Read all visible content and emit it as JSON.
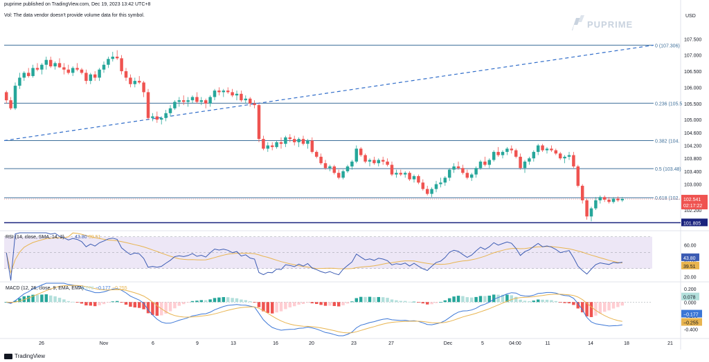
{
  "header": {
    "published": "puprime published on TradingView.com, Dec 19, 2023 13:42 UTC+8",
    "volume_note": "Vol: The data vendor doesn't provide volume data for this symbol."
  },
  "logo": "PUPRIME",
  "footer": "TradingView",
  "currency": "USD",
  "colors": {
    "up": "#26a69a",
    "down": "#ef5350",
    "fib_line": "#3c6e99",
    "trend": "#2f6cc9",
    "support": "#1a237e",
    "rsi_line": "#3b5bb3",
    "rsi_ma": "#e8b44f",
    "macd_line": "#3b76d6",
    "signal_line": "#e8b44f",
    "hist_up": "#26a69a",
    "hist_up_weak": "#b2dfdb",
    "hist_down": "#ef5350",
    "hist_down_weak": "#ffcdd2",
    "rsi_band": "#ede7f6"
  },
  "chart_data": [
    {
      "type": "candlestick",
      "ylim": [
        101.6,
        107.85
      ],
      "y_ticks": [
        "107.500",
        "107.000",
        "106.500",
        "106.000",
        "105.500",
        "105.000",
        "104.600",
        "104.200",
        "103.800",
        "103.400",
        "103.000",
        "102.200"
      ],
      "x_ticks": [
        "26",
        "Nov",
        "6",
        "9",
        "13",
        "16",
        "20",
        "23",
        "27",
        "Dec",
        "5",
        "04:00",
        "11",
        "14",
        "18",
        "21"
      ],
      "fib_levels": [
        {
          "label": "0 (107.306)",
          "value": 107.306
        },
        {
          "label": "0.236 (105.5",
          "value": 105.51
        },
        {
          "label": "0.382 (104.",
          "value": 104.35
        },
        {
          "label": "0.5 (103.48)",
          "value": 103.48
        },
        {
          "label": "0.618 (102.",
          "value": 102.58
        }
      ],
      "support": {
        "label": "101.805",
        "value": 101.805
      },
      "last_price": {
        "label": "102.541",
        "value": 102.541
      },
      "countdown": "02:17:22",
      "trendline": [
        {
          "x": 0,
          "y": 104.35
        },
        {
          "x": 169,
          "y": 107.306
        }
      ],
      "ohlc": [
        [
          105.85,
          105.9,
          105.5,
          105.6
        ],
        [
          105.6,
          105.7,
          105.3,
          105.35
        ],
        [
          105.35,
          106.15,
          105.3,
          106.05
        ],
        [
          106.05,
          106.45,
          105.95,
          106.3
        ],
        [
          106.3,
          106.5,
          106.2,
          106.45
        ],
        [
          106.45,
          106.6,
          106.3,
          106.35
        ],
        [
          106.35,
          106.7,
          106.3,
          106.6
        ],
        [
          106.6,
          106.75,
          106.5,
          106.55
        ],
        [
          106.55,
          106.75,
          106.4,
          106.7
        ],
        [
          106.7,
          106.95,
          106.55,
          106.85
        ],
        [
          106.85,
          106.95,
          106.6,
          106.65
        ],
        [
          106.65,
          106.8,
          106.55,
          106.75
        ],
        [
          106.75,
          106.9,
          106.6,
          106.62
        ],
        [
          106.62,
          106.75,
          106.4,
          106.55
        ],
        [
          106.55,
          106.7,
          106.4,
          106.45
        ],
        [
          106.45,
          106.65,
          106.35,
          106.6
        ],
        [
          106.6,
          106.75,
          106.5,
          106.55
        ],
        [
          106.55,
          106.6,
          106.4,
          106.45
        ],
        [
          106.45,
          106.55,
          106.1,
          106.2
        ],
        [
          106.2,
          106.45,
          106.1,
          106.4
        ],
        [
          106.4,
          106.5,
          106.2,
          106.3
        ],
        [
          106.3,
          106.6,
          106.2,
          106.55
        ],
        [
          106.55,
          106.8,
          106.45,
          106.7
        ],
        [
          106.7,
          106.95,
          106.6,
          106.88
        ],
        [
          106.88,
          107.1,
          106.8,
          106.95
        ],
        [
          106.95,
          107.15,
          106.85,
          106.9
        ],
        [
          106.9,
          107.0,
          106.4,
          106.5
        ],
        [
          106.5,
          106.6,
          106.2,
          106.3
        ],
        [
          106.3,
          106.4,
          106.0,
          106.1
        ],
        [
          106.1,
          106.3,
          106.0,
          106.2
        ],
        [
          106.2,
          106.35,
          106.1,
          106.15
        ],
        [
          106.15,
          106.2,
          105.7,
          105.85
        ],
        [
          105.85,
          105.95,
          105.0,
          105.05
        ],
        [
          105.05,
          105.2,
          104.95,
          105.1
        ],
        [
          105.1,
          105.25,
          104.9,
          105.0
        ],
        [
          105.0,
          105.1,
          104.85,
          105.05
        ],
        [
          105.05,
          105.3,
          104.95,
          105.2
        ],
        [
          105.2,
          105.45,
          105.1,
          105.35
        ],
        [
          105.35,
          105.6,
          105.3,
          105.55
        ],
        [
          105.55,
          105.7,
          105.4,
          105.6
        ],
        [
          105.6,
          105.75,
          105.45,
          105.55
        ],
        [
          105.55,
          105.7,
          105.4,
          105.6
        ],
        [
          105.6,
          105.75,
          105.5,
          105.7
        ],
        [
          105.7,
          105.85,
          105.5,
          105.55
        ],
        [
          105.55,
          105.7,
          105.45,
          105.6
        ],
        [
          105.6,
          105.65,
          105.35,
          105.5
        ],
        [
          105.5,
          105.75,
          105.4,
          105.7
        ],
        [
          105.7,
          105.95,
          105.6,
          105.9
        ],
        [
          105.9,
          106.0,
          105.75,
          105.85
        ],
        [
          105.85,
          105.95,
          105.7,
          105.9
        ],
        [
          105.9,
          106.0,
          105.8,
          105.85
        ],
        [
          105.85,
          105.95,
          105.7,
          105.75
        ],
        [
          105.75,
          105.9,
          105.6,
          105.8
        ],
        [
          105.8,
          105.9,
          105.55,
          105.6
        ],
        [
          105.6,
          105.75,
          105.5,
          105.65
        ],
        [
          105.65,
          105.7,
          105.4,
          105.5
        ],
        [
          105.5,
          105.6,
          105.35,
          105.45
        ],
        [
          105.45,
          105.5,
          104.3,
          104.4
        ],
        [
          104.4,
          104.5,
          104.05,
          104.1
        ],
        [
          104.1,
          104.3,
          104.0,
          104.2
        ],
        [
          104.2,
          104.3,
          104.05,
          104.15
        ],
        [
          104.15,
          104.35,
          104.1,
          104.3
        ],
        [
          104.3,
          104.45,
          104.1,
          104.25
        ],
        [
          104.25,
          104.5,
          104.15,
          104.45
        ],
        [
          104.45,
          104.55,
          104.3,
          104.4
        ],
        [
          104.4,
          104.5,
          104.2,
          104.3
        ],
        [
          104.3,
          104.45,
          104.15,
          104.4
        ],
        [
          104.4,
          104.5,
          104.2,
          104.25
        ],
        [
          104.25,
          104.4,
          104.1,
          104.35
        ],
        [
          104.35,
          104.45,
          103.95,
          104.0
        ],
        [
          104.0,
          104.05,
          103.8,
          103.85
        ],
        [
          103.85,
          103.95,
          103.6,
          103.65
        ],
        [
          103.65,
          103.75,
          103.45,
          103.5
        ],
        [
          103.5,
          103.6,
          103.4,
          103.55
        ],
        [
          103.55,
          103.6,
          103.3,
          103.35
        ],
        [
          103.35,
          103.45,
          103.15,
          103.2
        ],
        [
          103.2,
          103.45,
          103.15,
          103.4
        ],
        [
          103.4,
          103.6,
          103.35,
          103.55
        ],
        [
          103.55,
          103.75,
          103.45,
          103.7
        ],
        [
          103.7,
          104.2,
          103.65,
          104.1
        ],
        [
          104.1,
          104.15,
          103.85,
          103.9
        ],
        [
          103.9,
          103.95,
          103.65,
          103.7
        ],
        [
          103.7,
          103.8,
          103.55,
          103.75
        ],
        [
          103.75,
          103.85,
          103.6,
          103.65
        ],
        [
          103.65,
          103.8,
          103.55,
          103.75
        ],
        [
          103.75,
          103.85,
          103.6,
          103.7
        ],
        [
          103.7,
          103.8,
          103.55,
          103.6
        ],
        [
          103.6,
          103.7,
          103.25,
          103.3
        ],
        [
          103.3,
          103.45,
          103.2,
          103.35
        ],
        [
          103.35,
          103.45,
          103.25,
          103.3
        ],
        [
          103.3,
          103.4,
          103.2,
          103.35
        ],
        [
          103.35,
          103.4,
          103.1,
          103.15
        ],
        [
          103.15,
          103.3,
          103.05,
          103.25
        ],
        [
          103.25,
          103.3,
          103.0,
          103.05
        ],
        [
          103.05,
          103.15,
          102.8,
          102.85
        ],
        [
          102.85,
          102.95,
          102.65,
          102.7
        ],
        [
          102.7,
          102.9,
          102.6,
          102.85
        ],
        [
          102.85,
          103.1,
          102.75,
          103.0
        ],
        [
          103.0,
          103.2,
          102.9,
          103.05
        ],
        [
          103.05,
          103.25,
          102.95,
          103.2
        ],
        [
          103.2,
          103.5,
          103.1,
          103.45
        ],
        [
          103.45,
          103.65,
          103.35,
          103.55
        ],
        [
          103.55,
          103.7,
          103.45,
          103.5
        ],
        [
          103.5,
          103.6,
          103.3,
          103.35
        ],
        [
          103.35,
          103.45,
          103.15,
          103.2
        ],
        [
          103.2,
          103.35,
          103.1,
          103.3
        ],
        [
          103.3,
          103.55,
          103.2,
          103.5
        ],
        [
          103.5,
          103.75,
          103.45,
          103.7
        ],
        [
          103.7,
          103.85,
          103.55,
          103.6
        ],
        [
          103.6,
          103.8,
          103.5,
          103.75
        ],
        [
          103.75,
          104.05,
          103.7,
          104.0
        ],
        [
          104.0,
          104.15,
          103.85,
          103.9
        ],
        [
          103.9,
          104.05,
          103.8,
          104.0
        ],
        [
          104.0,
          104.15,
          103.9,
          104.1
        ],
        [
          104.1,
          104.2,
          103.95,
          104.05
        ],
        [
          104.05,
          104.1,
          103.8,
          103.85
        ],
        [
          103.85,
          103.95,
          103.45,
          103.5
        ],
        [
          103.5,
          103.75,
          103.35,
          103.7
        ],
        [
          103.7,
          103.85,
          103.6,
          103.8
        ],
        [
          103.8,
          104.05,
          103.7,
          104.0
        ],
        [
          104.0,
          104.25,
          103.9,
          104.2
        ],
        [
          104.2,
          104.25,
          104.0,
          104.05
        ],
        [
          104.05,
          104.15,
          103.95,
          104.1
        ],
        [
          104.1,
          104.2,
          104.0,
          104.05
        ],
        [
          104.05,
          104.1,
          103.9,
          103.95
        ],
        [
          103.95,
          104.0,
          103.75,
          103.8
        ],
        [
          103.8,
          103.9,
          103.65,
          103.85
        ],
        [
          103.85,
          104.0,
          103.75,
          103.9
        ],
        [
          103.9,
          104.0,
          103.5,
          103.55
        ],
        [
          103.55,
          103.6,
          102.9,
          102.95
        ],
        [
          102.95,
          103.0,
          102.4,
          102.5
        ],
        [
          102.5,
          102.55,
          101.9,
          102.0
        ],
        [
          102.0,
          102.3,
          101.85,
          102.25
        ],
        [
          102.25,
          102.6,
          102.2,
          102.5
        ],
        [
          102.5,
          102.65,
          102.4,
          102.6
        ],
        [
          102.6,
          102.65,
          102.45,
          102.52
        ],
        [
          102.52,
          102.6,
          102.4,
          102.45
        ],
        [
          102.45,
          102.6,
          102.4,
          102.55
        ],
        [
          102.55,
          102.62,
          102.45,
          102.5
        ],
        [
          102.5,
          102.6,
          102.45,
          102.541
        ]
      ]
    },
    {
      "type": "line",
      "title": "RSI (14, close, SMA, 14, 2)",
      "values_label": [
        "43.80",
        "39.51"
      ],
      "ylim": [
        15,
        75
      ],
      "y_ticks": [
        "60.00",
        "40.00",
        "20.00"
      ],
      "band": [
        30,
        70
      ],
      "series": [
        {
          "name": "RSI",
          "last": 43.8
        },
        {
          "name": "MA",
          "last": 39.51
        }
      ]
    },
    {
      "type": "bar",
      "title": "MACD (12, 26, close, 9, EMA, EMA)",
      "values_label": [
        "0.078",
        "−0.177",
        "−0.255"
      ],
      "ylim": [
        -0.5,
        0.28
      ],
      "y_ticks": [
        "0.200",
        "0.000",
        "-0.200",
        "-0.400"
      ],
      "tags": [
        "0.078",
        "−0.177",
        "−0.255"
      ]
    }
  ]
}
